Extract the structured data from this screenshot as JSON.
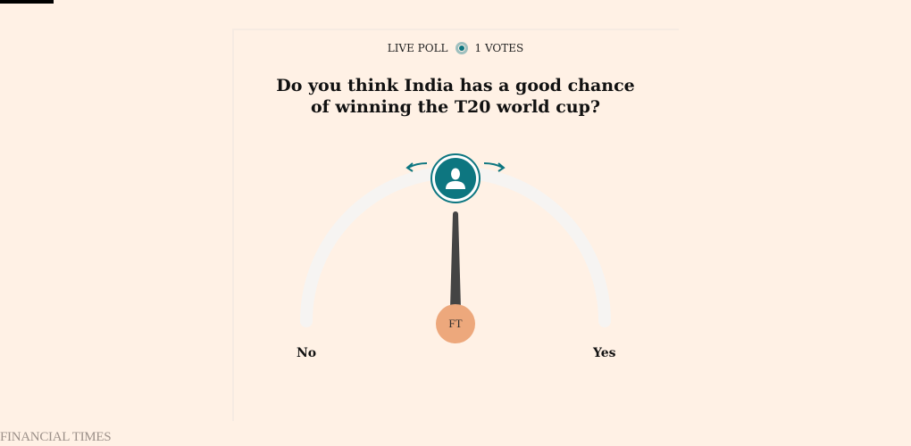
{
  "poll": {
    "live_label": "LIVE POLL",
    "votes_label": "1 VOTES",
    "question": "Do you think India has a good chance of winning the T20 world cup?",
    "left_label": "No",
    "right_label": "Yes",
    "slider_value_percent": 50,
    "badge_text": "FT"
  },
  "footer": {
    "brand": "FINANCIAL TIMES"
  },
  "colors": {
    "background": "#fff1e5",
    "accent": "#0d7680",
    "badge": "#eda87c"
  }
}
